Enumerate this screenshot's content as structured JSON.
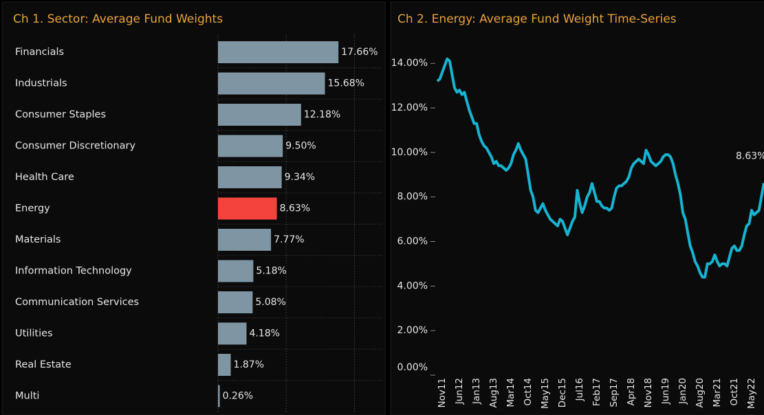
{
  "chart_data": [
    {
      "type": "hbar",
      "title": "Ch 1.  Sector:  Average Fund Weights",
      "categories": [
        "Financials",
        "Industrials",
        "Consumer Staples",
        "Consumer Discretionary",
        "Health Care",
        "Energy",
        "Materials",
        "Information Technology",
        "Communication Services",
        "Utilities",
        "Real Estate",
        "Multi"
      ],
      "values": [
        17.66,
        15.68,
        12.18,
        9.5,
        9.34,
        8.63,
        7.77,
        5.18,
        5.08,
        4.18,
        1.87,
        0.26
      ],
      "value_labels": [
        "17.66%",
        "15.68%",
        "12.18%",
        "9.50%",
        "9.34%",
        "8.63%",
        "7.77%",
        "5.18%",
        "5.08%",
        "4.18%",
        "1.87%",
        "0.26%"
      ],
      "colors": [
        "#7f95a3",
        "#7f95a3",
        "#7f95a3",
        "#7f95a3",
        "#7f95a3",
        "#f4433c",
        "#7f95a3",
        "#7f95a3",
        "#7f95a3",
        "#7f95a3",
        "#7f95a3",
        "#7f95a3"
      ],
      "xlim": [
        0,
        24.5
      ],
      "xticks": [
        0,
        10,
        20
      ],
      "grid": true
    },
    {
      "type": "line",
      "title": "Ch 2. Energy:  Average Fund Weight Time-Series",
      "categories": [
        null,
        null,
        "Nov11",
        null,
        null,
        null,
        null,
        null,
        null,
        "Jun12",
        null,
        null,
        null,
        null,
        null,
        null,
        "Jan13",
        null,
        null,
        null,
        null,
        null,
        null,
        "Aug13",
        null,
        null,
        null,
        null,
        null,
        null,
        "Mar14",
        null,
        null,
        null,
        null,
        null,
        null,
        "Oct14",
        null,
        null,
        null,
        null,
        null,
        null,
        "May15",
        null,
        null,
        null,
        null,
        null,
        null,
        "Dec15",
        null,
        null,
        null,
        null,
        null,
        null,
        "Jul16",
        null,
        null,
        null,
        null,
        null,
        null,
        "Feb17",
        null,
        null,
        null,
        null,
        null,
        null,
        "Sep17",
        null,
        null,
        null,
        null,
        null,
        null,
        "Apr18",
        null,
        null,
        null,
        null,
        null,
        null,
        "Nov18",
        null,
        null,
        null,
        null,
        null,
        null,
        "Jun19",
        null,
        null,
        null,
        null,
        null,
        null,
        "Jan20",
        null,
        null,
        null,
        null,
        null,
        null,
        "Aug20",
        null,
        null,
        null,
        null,
        null,
        null,
        "Mar21",
        null,
        null,
        null,
        null,
        null,
        null,
        "Oct21",
        null,
        null,
        null,
        null,
        null,
        null,
        "May22",
        null,
        null,
        null,
        null,
        null
      ],
      "series": [
        {
          "name": "Energy",
          "color": "#17b3cf",
          "values": [
            13.2,
            13.3,
            13.6,
            13.9,
            14.2,
            14.1,
            13.5,
            12.9,
            12.7,
            12.8,
            12.6,
            12.7,
            12.3,
            11.9,
            11.6,
            11.3,
            11.3,
            10.8,
            10.5,
            10.3,
            10.2,
            10.0,
            9.8,
            9.5,
            9.6,
            9.4,
            9.4,
            9.3,
            9.2,
            9.3,
            9.5,
            9.9,
            10.1,
            10.4,
            10.1,
            9.9,
            9.7,
            9.0,
            8.3,
            8.0,
            7.4,
            7.3,
            7.5,
            7.7,
            7.4,
            7.2,
            7.0,
            6.9,
            6.8,
            6.7,
            7.0,
            6.9,
            6.6,
            6.3,
            6.6,
            6.9,
            7.1,
            8.3,
            7.7,
            7.3,
            7.6,
            8.0,
            8.2,
            8.6,
            8.2,
            7.8,
            7.8,
            7.6,
            7.5,
            7.5,
            7.4,
            7.5,
            8.0,
            8.4,
            8.5,
            8.5,
            8.6,
            8.7,
            8.9,
            9.3,
            9.5,
            9.6,
            9.7,
            9.6,
            9.5,
            10.1,
            9.9,
            9.6,
            9.5,
            9.4,
            9.5,
            9.6,
            9.8,
            9.9,
            9.9,
            9.8,
            9.5,
            9.0,
            8.6,
            8.1,
            7.3,
            7.0,
            6.4,
            5.8,
            5.5,
            5.1,
            4.9,
            4.6,
            4.4,
            4.4,
            5.0,
            5.0,
            5.1,
            5.4,
            5.1,
            4.9,
            5.0,
            5.0,
            4.9,
            5.3,
            5.7,
            5.8,
            5.6,
            5.6,
            5.8,
            6.3,
            6.7,
            6.8,
            7.4,
            7.2,
            7.3,
            7.4,
            8.0,
            8.63
          ]
        }
      ],
      "end_label": "8.63%",
      "ylim": [
        0,
        14.5
      ],
      "yticks": [
        {
          "value": 0,
          "label": "0.00%"
        },
        {
          "value": 2,
          "label": "2.00%"
        },
        {
          "value": 4,
          "label": "4.00%"
        },
        {
          "value": 6,
          "label": "6.00%"
        },
        {
          "value": 8,
          "label": "8.00%"
        },
        {
          "value": 10,
          "label": "10.00%"
        },
        {
          "value": 12,
          "label": "12.00%"
        },
        {
          "value": 14,
          "label": "14.00%"
        }
      ]
    }
  ]
}
